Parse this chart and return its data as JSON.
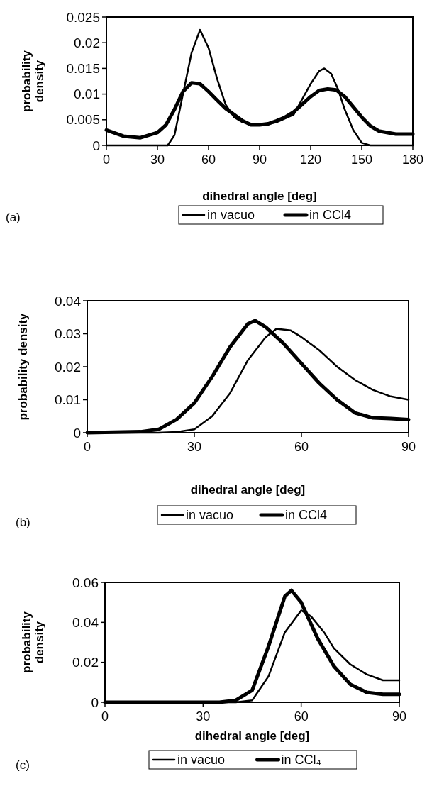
{
  "chart_data": [
    {
      "type": "line",
      "xlabel": "dihedral angle [deg]",
      "ylabel": "probability density",
      "xlim": [
        0,
        180
      ],
      "xticks": [
        0,
        30,
        60,
        90,
        120,
        150,
        180
      ],
      "ylim": [
        0,
        0.025
      ],
      "yticks": [
        0,
        0.005,
        0.01,
        0.015,
        0.02,
        0.025
      ],
      "legend": "bottom",
      "annotations": [
        "(a)"
      ],
      "series": [
        {
          "name": "in vacuo",
          "color": "#000000",
          "x": [
            0,
            30,
            36,
            40,
            45,
            50,
            55,
            60,
            65,
            70,
            75,
            80,
            90,
            100,
            110,
            115,
            120,
            125,
            128,
            132,
            136,
            140,
            145,
            150,
            155,
            180
          ],
          "values": [
            0,
            0,
            0,
            0.002,
            0.01,
            0.018,
            0.0225,
            0.019,
            0.013,
            0.008,
            0.0055,
            0.0045,
            0.004,
            0.0045,
            0.006,
            0.009,
            0.012,
            0.0145,
            0.015,
            0.014,
            0.011,
            0.007,
            0.003,
            0.0005,
            0,
            0
          ]
        },
        {
          "name": "in CCl4",
          "color": "#000000",
          "x": [
            0,
            10,
            20,
            30,
            35,
            40,
            45,
            50,
            55,
            60,
            65,
            70,
            75,
            80,
            85,
            90,
            95,
            100,
            105,
            110,
            115,
            120,
            125,
            130,
            135,
            140,
            145,
            150,
            155,
            160,
            170,
            180
          ],
          "values": [
            0.003,
            0.0018,
            0.0015,
            0.0025,
            0.004,
            0.007,
            0.0105,
            0.0122,
            0.012,
            0.0105,
            0.0088,
            0.0072,
            0.006,
            0.0048,
            0.004,
            0.004,
            0.0042,
            0.0048,
            0.0055,
            0.0065,
            0.008,
            0.0095,
            0.0107,
            0.011,
            0.0108,
            0.0095,
            0.0075,
            0.0055,
            0.0038,
            0.0028,
            0.0022,
            0.0022
          ]
        }
      ]
    },
    {
      "type": "line",
      "xlabel": "dihedral angle [deg]",
      "ylabel": "probability density",
      "xlim": [
        0,
        90
      ],
      "xticks": [
        0,
        30,
        60,
        90
      ],
      "ylim": [
        0,
        0.04
      ],
      "yticks": [
        0,
        0.01,
        0.02,
        0.03,
        0.04
      ],
      "legend": "bottom",
      "annotations": [
        "(b)"
      ],
      "series": [
        {
          "name": "in vacuo",
          "color": "#000000",
          "x": [
            0,
            20,
            25,
            30,
            35,
            40,
            45,
            50,
            53,
            57,
            60,
            65,
            70,
            75,
            80,
            85,
            90
          ],
          "values": [
            0,
            0,
            0.0002,
            0.001,
            0.005,
            0.012,
            0.022,
            0.029,
            0.0315,
            0.031,
            0.029,
            0.025,
            0.02,
            0.016,
            0.013,
            0.011,
            0.01
          ]
        },
        {
          "name": "in CCl4",
          "color": "#000000",
          "x": [
            0,
            15,
            20,
            25,
            30,
            35,
            40,
            45,
            47,
            50,
            55,
            60,
            65,
            70,
            75,
            80,
            85,
            90
          ],
          "values": [
            0,
            0.0003,
            0.001,
            0.004,
            0.009,
            0.017,
            0.026,
            0.033,
            0.034,
            0.032,
            0.027,
            0.021,
            0.015,
            0.01,
            0.006,
            0.0045,
            0.0043,
            0.004
          ]
        }
      ]
    },
    {
      "type": "line",
      "xlabel": "dihedral angle [deg]",
      "ylabel": "probability density",
      "xlim": [
        0,
        90
      ],
      "xticks": [
        0,
        30,
        60,
        90
      ],
      "ylim": [
        0,
        0.06
      ],
      "yticks": [
        0,
        0.02,
        0.04,
        0.06
      ],
      "legend": "bottom",
      "annotations": [
        "(c)"
      ],
      "series": [
        {
          "name": "in vacuo",
          "color": "#000000",
          "x": [
            0,
            40,
            45,
            50,
            55,
            60,
            63,
            67,
            70,
            75,
            80,
            85,
            90
          ],
          "values": [
            0,
            0,
            0.001,
            0.013,
            0.035,
            0.046,
            0.043,
            0.035,
            0.027,
            0.019,
            0.014,
            0.011,
            0.011
          ]
        },
        {
          "name": "in CCl₄",
          "color": "#000000",
          "x": [
            0,
            35,
            40,
            45,
            50,
            55,
            57,
            60,
            65,
            70,
            75,
            80,
            85,
            90
          ],
          "values": [
            0,
            0,
            0.001,
            0.006,
            0.028,
            0.053,
            0.056,
            0.05,
            0.032,
            0.018,
            0.009,
            0.005,
            0.004,
            0.004
          ]
        }
      ]
    }
  ]
}
